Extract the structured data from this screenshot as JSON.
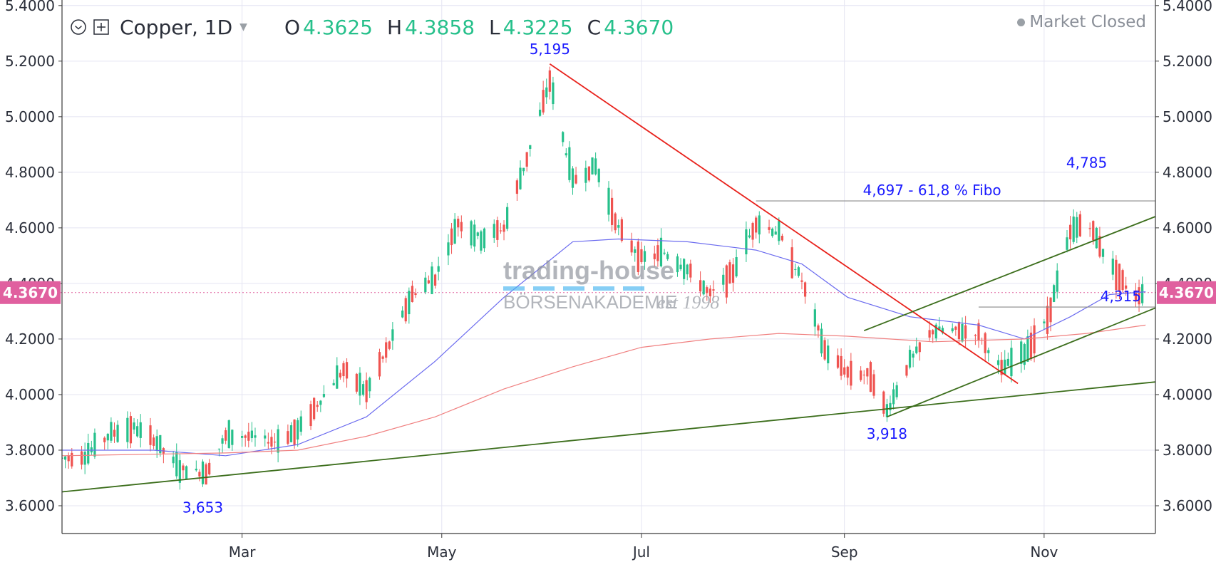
{
  "header": {
    "symbol": "Copper, 1D",
    "ohlc": [
      {
        "key": "O",
        "value": "4.3625"
      },
      {
        "key": "H",
        "value": "4.3858"
      },
      {
        "key": "L",
        "value": "4.3225"
      },
      {
        "key": "C",
        "value": "4.3670"
      }
    ],
    "status": "Market Closed"
  },
  "watermark": {
    "line1": "trading-house",
    "line2": "BÖRSENAKADEMIE",
    "line3": "est 1998"
  },
  "colors": {
    "up": "#26c08b",
    "down": "#ef5350",
    "ma_short": "#6b6bef",
    "ma_long": "#f08080",
    "downtrend": "#e8221c",
    "trend_green": "#3c6e1c",
    "annotation": "#1a1aff",
    "price_tag": "#e0609f",
    "grid": "#e4e4f2"
  },
  "chart_data": {
    "type": "candlestick",
    "y_axis": {
      "range": [
        3.5,
        5.42
      ],
      "ticks": [
        "3.6000",
        "3.8000",
        "4.0000",
        "4.2000",
        "4.4000",
        "4.6000",
        "4.8000",
        "5.0000",
        "5.2000",
        "5.4000"
      ],
      "scale": "linear"
    },
    "x_axis": {
      "range": [
        "2021-01-05",
        "2021-12-05"
      ],
      "ticks": [
        {
          "label": "Mar",
          "date": "2021-03-01"
        },
        {
          "label": "May",
          "date": "2021-05-01"
        },
        {
          "label": "Jul",
          "date": "2021-07-01"
        },
        {
          "label": "Sep",
          "date": "2021-09-01"
        },
        {
          "label": "Nov",
          "date": "2021-11-01"
        }
      ]
    },
    "current_price": {
      "label": "4.3670",
      "value": 4.367
    },
    "price_path": [
      [
        "2021-01-05",
        3.77
      ],
      [
        "2021-01-12",
        3.78
      ],
      [
        "2021-01-20",
        3.86
      ],
      [
        "2021-01-27",
        3.88
      ],
      [
        "2021-02-02",
        3.84
      ],
      [
        "2021-02-10",
        3.73
      ],
      [
        "2021-02-18",
        3.72
      ],
      [
        "2021-02-24",
        3.85
      ],
      [
        "2021-03-03",
        3.85
      ],
      [
        "2021-03-11",
        3.83
      ],
      [
        "2021-03-18",
        3.87
      ],
      [
        "2021-03-25",
        3.98
      ],
      [
        "2021-04-01",
        4.09
      ],
      [
        "2021-04-08",
        4.01
      ],
      [
        "2021-04-15",
        4.18
      ],
      [
        "2021-04-22",
        4.36
      ],
      [
        "2021-04-29",
        4.42
      ],
      [
        "2021-05-06",
        4.62
      ],
      [
        "2021-05-13",
        4.56
      ],
      [
        "2021-05-20",
        4.6
      ],
      [
        "2021-05-27",
        4.85
      ],
      [
        "2021-06-03",
        5.13
      ],
      [
        "2021-06-10",
        4.77
      ],
      [
        "2021-06-17",
        4.82
      ],
      [
        "2021-06-24",
        4.6
      ],
      [
        "2021-07-01",
        4.49
      ],
      [
        "2021-07-08",
        4.51
      ],
      [
        "2021-07-15",
        4.45
      ],
      [
        "2021-07-22",
        4.36
      ],
      [
        "2021-07-29",
        4.44
      ],
      [
        "2021-08-05",
        4.62
      ],
      [
        "2021-08-12",
        4.58
      ],
      [
        "2021-08-19",
        4.41
      ],
      [
        "2021-08-26",
        4.16
      ],
      [
        "2021-09-02",
        4.08
      ],
      [
        "2021-09-09",
        4.07
      ],
      [
        "2021-09-14",
        3.94
      ],
      [
        "2021-09-21",
        4.12
      ],
      [
        "2021-09-28",
        4.23
      ],
      [
        "2021-10-05",
        4.23
      ],
      [
        "2021-10-12",
        4.22
      ],
      [
        "2021-10-19",
        4.09
      ],
      [
        "2021-10-26",
        4.15
      ],
      [
        "2021-11-02",
        4.27
      ],
      [
        "2021-11-09",
        4.58
      ],
      [
        "2021-11-14",
        4.63
      ],
      [
        "2021-11-21",
        4.47
      ],
      [
        "2021-11-28",
        4.36
      ],
      [
        "2021-12-02",
        4.367
      ]
    ],
    "moving_averages": [
      {
        "color": "#6b6bef",
        "points": [
          [
            "2021-01-05",
            3.8
          ],
          [
            "2021-02-02",
            3.8
          ],
          [
            "2021-02-24",
            3.78
          ],
          [
            "2021-03-18",
            3.82
          ],
          [
            "2021-04-08",
            3.92
          ],
          [
            "2021-04-29",
            4.12
          ],
          [
            "2021-05-20",
            4.35
          ],
          [
            "2021-06-10",
            4.55
          ],
          [
            "2021-06-24",
            4.56
          ],
          [
            "2021-07-15",
            4.55
          ],
          [
            "2021-08-05",
            4.52
          ],
          [
            "2021-08-19",
            4.47
          ],
          [
            "2021-09-02",
            4.35
          ],
          [
            "2021-09-21",
            4.28
          ],
          [
            "2021-10-12",
            4.25
          ],
          [
            "2021-10-26",
            4.2
          ],
          [
            "2021-11-09",
            4.28
          ],
          [
            "2021-11-21",
            4.36
          ],
          [
            "2021-12-02",
            4.37
          ]
        ]
      },
      {
        "color": "#f08080",
        "points": [
          [
            "2021-01-05",
            3.78
          ],
          [
            "2021-02-24",
            3.79
          ],
          [
            "2021-03-18",
            3.8
          ],
          [
            "2021-04-08",
            3.85
          ],
          [
            "2021-04-29",
            3.92
          ],
          [
            "2021-05-20",
            4.02
          ],
          [
            "2021-06-10",
            4.1
          ],
          [
            "2021-07-01",
            4.17
          ],
          [
            "2021-07-22",
            4.2
          ],
          [
            "2021-08-12",
            4.22
          ],
          [
            "2021-09-02",
            4.21
          ],
          [
            "2021-09-28",
            4.19
          ],
          [
            "2021-10-26",
            4.2
          ],
          [
            "2021-11-14",
            4.22
          ],
          [
            "2021-12-02",
            4.25
          ]
        ]
      }
    ],
    "trendlines": [
      {
        "color": "#e8221c",
        "from": [
          "2021-06-03",
          5.19
        ],
        "to": [
          "2021-10-24",
          4.04
        ]
      },
      {
        "color": "#3c6e1c",
        "from": [
          "2021-01-05",
          3.65
        ],
        "to": [
          "2022-01-20",
          4.1
        ]
      },
      {
        "color": "#3c6e1c",
        "from": [
          "2021-09-14",
          3.92
        ],
        "to": [
          "2022-01-05",
          4.46
        ]
      },
      {
        "color": "#3c6e1c",
        "from": [
          "2021-09-07",
          4.23
        ],
        "to": [
          "2022-01-02",
          4.77
        ]
      }
    ],
    "horizontal_levels": [
      {
        "value": 4.697,
        "from": "2021-08-05",
        "label": "4,697 - 61,8 % Fibo"
      },
      {
        "value": 4.315,
        "from": "2021-10-12",
        "label": "4,315"
      }
    ],
    "annotations": [
      {
        "label": "5,195",
        "date": "2021-06-03",
        "value": 5.195,
        "position": "above"
      },
      {
        "label": "4,785",
        "date": "2021-11-14",
        "value": 4.785,
        "position": "above"
      },
      {
        "label": "3,918",
        "date": "2021-09-14",
        "value": 3.918,
        "position": "below"
      },
      {
        "label": "3,653",
        "date": "2021-02-17",
        "value": 3.653,
        "position": "below"
      }
    ]
  }
}
